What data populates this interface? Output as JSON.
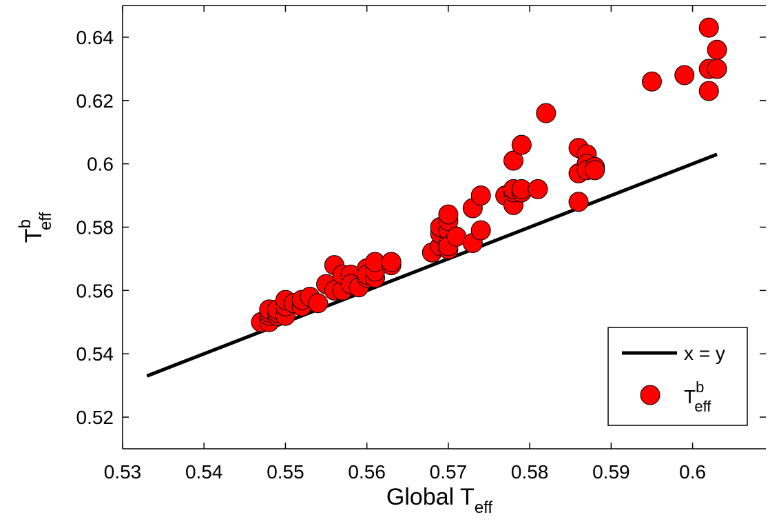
{
  "chart_data": {
    "type": "scatter",
    "xlabel": {
      "main": "Global T",
      "sub": "eff"
    },
    "ylabel": {
      "main": "T",
      "sup": "b",
      "sub": "eff"
    },
    "xlim": [
      0.53,
      0.609
    ],
    "ylim": [
      0.51,
      0.65
    ],
    "xticks": [
      "0.53",
      "0.54",
      "0.55",
      "0.56",
      "0.57",
      "0.58",
      "0.59",
      "0.6"
    ],
    "yticks": [
      "0.52",
      "0.54",
      "0.56",
      "0.58",
      "0.6",
      "0.62",
      "0.64"
    ],
    "grid": false,
    "legend": {
      "placement": "bottom-right",
      "entries": [
        {
          "label": "x = y",
          "kind": "line"
        },
        {
          "label": "T",
          "sup": "b",
          "sub": "eff",
          "kind": "marker"
        }
      ]
    },
    "colors": {
      "marker_fill": "#ff0000",
      "marker_edge": "#000000",
      "line": "#000000"
    },
    "series": [
      {
        "kind": "line",
        "x": [
          0.533,
          0.603
        ],
        "y": [
          0.533,
          0.603
        ]
      },
      {
        "kind": "scatter",
        "x": [
          0.547,
          0.548,
          0.548,
          0.548,
          0.548,
          0.549,
          0.549,
          0.549,
          0.55,
          0.55,
          0.55,
          0.551,
          0.552,
          0.552,
          0.553,
          0.554,
          0.555,
          0.556,
          0.556,
          0.557,
          0.557,
          0.558,
          0.558,
          0.559,
          0.56,
          0.56,
          0.56,
          0.561,
          0.561,
          0.561,
          0.563,
          0.563,
          0.568,
          0.569,
          0.569,
          0.569,
          0.57,
          0.57,
          0.57,
          0.57,
          0.57,
          0.57,
          0.571,
          0.573,
          0.573,
          0.574,
          0.574,
          0.577,
          0.578,
          0.578,
          0.578,
          0.578,
          0.579,
          0.579,
          0.579,
          0.581,
          0.582,
          0.586,
          0.586,
          0.586,
          0.587,
          0.587,
          0.587,
          0.588,
          0.588,
          0.595,
          0.599,
          0.602,
          0.602,
          0.602,
          0.603,
          0.603
        ],
        "y": [
          0.55,
          0.55,
          0.552,
          0.553,
          0.554,
          0.552,
          0.553,
          0.554,
          0.552,
          0.555,
          0.557,
          0.556,
          0.555,
          0.557,
          0.558,
          0.556,
          0.562,
          0.568,
          0.56,
          0.56,
          0.565,
          0.565,
          0.562,
          0.561,
          0.564,
          0.567,
          0.565,
          0.564,
          0.566,
          0.569,
          0.568,
          0.569,
          0.572,
          0.574,
          0.578,
          0.58,
          0.573,
          0.575,
          0.579,
          0.582,
          0.584,
          0.574,
          0.577,
          0.575,
          0.586,
          0.579,
          0.59,
          0.59,
          0.601,
          0.587,
          0.591,
          0.592,
          0.606,
          0.591,
          0.592,
          0.592,
          0.616,
          0.605,
          0.597,
          0.588,
          0.603,
          0.6,
          0.598,
          0.599,
          0.598,
          0.626,
          0.628,
          0.643,
          0.63,
          0.623,
          0.636,
          0.63
        ]
      }
    ]
  }
}
